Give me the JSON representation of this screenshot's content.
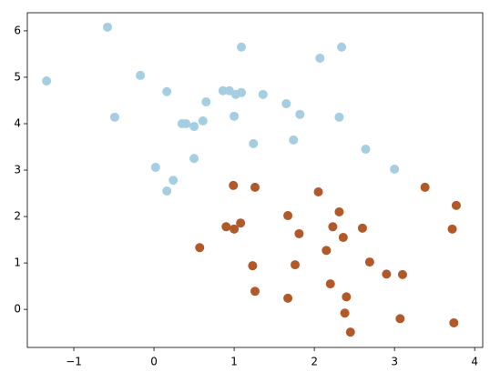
{
  "chart_data": {
    "type": "scatter",
    "series": [
      {
        "color": "#a6cee3",
        "x": [
          -1.34,
          -0.58,
          -0.49,
          -0.17,
          0.16,
          0.02,
          0.16,
          0.24,
          0.35,
          0.4,
          0.5,
          0.5,
          0.61,
          0.65,
          0.86,
          0.94,
          1.02,
          1.09,
          1.0,
          1.09,
          1.24,
          1.36,
          1.65,
          1.74,
          1.82,
          2.07,
          2.34,
          2.31,
          2.64,
          3.0
        ],
        "values": [
          4.92,
          6.08,
          4.14,
          5.04,
          4.69,
          3.06,
          2.55,
          2.78,
          4.0,
          4.0,
          3.94,
          3.25,
          4.06,
          4.47,
          4.71,
          4.71,
          4.63,
          4.67,
          4.16,
          5.65,
          3.57,
          4.63,
          4.43,
          3.65,
          4.2,
          5.41,
          5.65,
          4.14,
          3.45,
          3.02
        ]
      },
      {
        "color": "#b15928",
        "x": [
          0.57,
          0.9,
          0.99,
          1.0,
          1.08,
          1.26,
          1.23,
          1.26,
          1.67,
          1.67,
          1.76,
          1.81,
          2.05,
          2.15,
          2.23,
          2.31,
          2.36,
          2.2,
          2.4,
          2.38,
          2.45,
          2.6,
          2.69,
          2.9,
          3.1,
          3.07,
          3.38,
          3.72,
          3.77,
          3.74
        ],
        "values": [
          1.33,
          1.78,
          2.67,
          1.73,
          1.86,
          2.63,
          0.94,
          0.39,
          2.02,
          0.24,
          0.96,
          1.63,
          2.53,
          1.27,
          1.78,
          2.1,
          1.55,
          0.55,
          0.27,
          -0.08,
          -0.49,
          1.75,
          1.02,
          0.76,
          0.75,
          -0.2,
          2.63,
          1.73,
          2.24,
          -0.29
        ]
      }
    ],
    "xlim": [
      -1.58,
      4.1
    ],
    "ylim": [
      -0.82,
      6.39
    ],
    "xticks": [
      {
        "value": -1,
        "label": "−1"
      },
      0,
      1,
      2,
      3,
      4
    ],
    "yticks": [
      0,
      1,
      2,
      3,
      4,
      5,
      6
    ]
  }
}
